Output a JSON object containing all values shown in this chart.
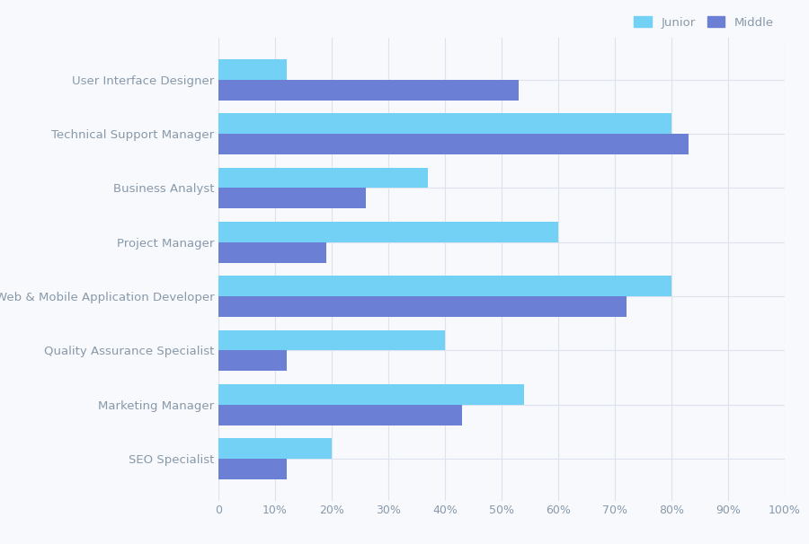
{
  "categories": [
    "User Interface Designer",
    "Technical Support Manager",
    "Business Analyst",
    "Project Manager",
    "Web & Mobile Application Developer",
    "Quality Assurance Specialist",
    "Marketing Manager",
    "SEO Specialist"
  ],
  "junior": [
    12,
    80,
    37,
    60,
    80,
    40,
    54,
    20
  ],
  "middle": [
    53,
    83,
    26,
    19,
    72,
    12,
    43,
    12
  ],
  "junior_color": "#74d1f6",
  "middle_color": "#6b7fd4",
  "background_color": "#f8f9fc",
  "grid_color": "#dde3ee",
  "label_color": "#8899aa",
  "title_legend_junior": "Junior",
  "title_legend_middle": "Middle",
  "xlim": [
    0,
    100
  ],
  "xtick_labels": [
    "0",
    "10%",
    "20%",
    "30%",
    "40%",
    "50%",
    "60%",
    "70%",
    "80%",
    "90%",
    "100%"
  ],
  "xtick_values": [
    0,
    10,
    20,
    30,
    40,
    50,
    60,
    70,
    80,
    90,
    100
  ],
  "bar_height": 0.38,
  "figsize": [
    9.0,
    6.06
  ],
  "dpi": 100
}
